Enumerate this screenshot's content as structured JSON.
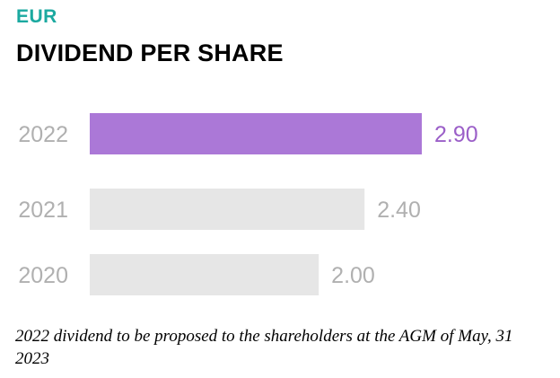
{
  "header": {
    "currency": "EUR",
    "title": "DIVIDEND PER SHARE"
  },
  "colors": {
    "accent_teal": "#1ba9a0",
    "highlight_bar": "#ab78d7",
    "highlight_label": "#9b5fc8",
    "muted_bar": "#e6e6e6",
    "muted_label": "#b0b0b0"
  },
  "chart_data": {
    "type": "bar",
    "orientation": "horizontal",
    "categories": [
      "2022",
      "2021",
      "2020"
    ],
    "values": [
      2.9,
      2.4,
      2.0
    ],
    "value_labels": [
      "2.90",
      "2.40",
      "2.00"
    ],
    "highlighted": [
      "2022"
    ],
    "xlim": [
      0,
      2.9
    ],
    "grid": false,
    "axes_visible": false
  },
  "footnote": "2022 dividend to be proposed to the shareholders at the AGM of May, 31 2023"
}
